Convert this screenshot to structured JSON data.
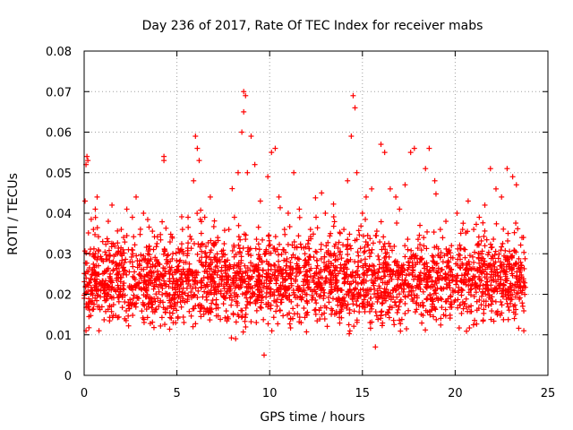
{
  "chart_data": {
    "type": "scatter",
    "title": "Day 236 of 2017, Rate Of TEC Index for receiver mabs",
    "xlabel": "GPS time / hours",
    "ylabel": "ROTI / TECUs",
    "xlim": [
      0,
      25
    ],
    "ylim": [
      0,
      0.08
    ],
    "xticks": [
      0,
      5,
      10,
      15,
      20,
      25
    ],
    "yticks": [
      0,
      0.01,
      0.02,
      0.03,
      0.04,
      0.05,
      0.06,
      0.07,
      0.08
    ],
    "grid": true,
    "marker": "plus",
    "color": "#ff0000",
    "x_range_data": [
      0.0,
      23.8
    ],
    "series": [
      {
        "values": [
          [
            0.05,
            0.043
          ],
          [
            0.1,
            0.052
          ],
          [
            0.15,
            0.054
          ],
          [
            0.2,
            0.053
          ],
          [
            0.1,
            0.011
          ],
          [
            0.3,
            0.03
          ],
          [
            0.5,
            0.036
          ],
          [
            0.6,
            0.041
          ],
          [
            0.7,
            0.044
          ],
          [
            0.8,
            0.011
          ],
          [
            1.0,
            0.033
          ],
          [
            1.3,
            0.038
          ],
          [
            1.5,
            0.042
          ],
          [
            1.8,
            0.03
          ],
          [
            2.0,
            0.036
          ],
          [
            2.3,
            0.041
          ],
          [
            2.6,
            0.039
          ],
          [
            2.8,
            0.044
          ],
          [
            3.0,
            0.025
          ],
          [
            3.2,
            0.04
          ],
          [
            3.5,
            0.019
          ],
          [
            3.8,
            0.022
          ],
          [
            4.1,
            0.018
          ],
          [
            4.3,
            0.054
          ],
          [
            4.3,
            0.053
          ],
          [
            4.5,
            0.028
          ],
          [
            4.8,
            0.013
          ],
          [
            5.0,
            0.026
          ],
          [
            5.3,
            0.036
          ],
          [
            5.6,
            0.039
          ],
          [
            5.9,
            0.048
          ],
          [
            6.0,
            0.059
          ],
          [
            6.1,
            0.056
          ],
          [
            6.2,
            0.053
          ],
          [
            6.5,
            0.039
          ],
          [
            6.8,
            0.044
          ],
          [
            7.0,
            0.032
          ],
          [
            7.2,
            0.034
          ],
          [
            7.5,
            0.03
          ],
          [
            7.8,
            0.036
          ],
          [
            8.1,
            0.039
          ],
          [
            8.3,
            0.05
          ],
          [
            8.5,
            0.06
          ],
          [
            8.6,
            0.07
          ],
          [
            8.7,
            0.069
          ],
          [
            8.6,
            0.065
          ],
          [
            8.8,
            0.05
          ],
          [
            9.0,
            0.059
          ],
          [
            9.2,
            0.052
          ],
          [
            9.5,
            0.043
          ],
          [
            9.7,
            0.005
          ],
          [
            9.9,
            0.049
          ],
          [
            10.1,
            0.055
          ],
          [
            10.3,
            0.056
          ],
          [
            10.5,
            0.044
          ],
          [
            10.8,
            0.036
          ],
          [
            11.0,
            0.04
          ],
          [
            11.3,
            0.05
          ],
          [
            11.6,
            0.041
          ],
          [
            11.9,
            0.03
          ],
          [
            12.2,
            0.036
          ],
          [
            12.5,
            0.039
          ],
          [
            12.8,
            0.045
          ],
          [
            13.0,
            0.04
          ],
          [
            13.3,
            0.03
          ],
          [
            13.5,
            0.026
          ],
          [
            13.8,
            0.035
          ],
          [
            14.0,
            0.036
          ],
          [
            14.2,
            0.048
          ],
          [
            14.4,
            0.059
          ],
          [
            14.5,
            0.069
          ],
          [
            14.6,
            0.066
          ],
          [
            14.7,
            0.05
          ],
          [
            15.0,
            0.04
          ],
          [
            15.2,
            0.044
          ],
          [
            15.5,
            0.046
          ],
          [
            15.7,
            0.007
          ],
          [
            16.0,
            0.057
          ],
          [
            16.2,
            0.055
          ],
          [
            16.5,
            0.046
          ],
          [
            16.8,
            0.044
          ],
          [
            17.0,
            0.041
          ],
          [
            17.3,
            0.047
          ],
          [
            17.6,
            0.055
          ],
          [
            17.8,
            0.056
          ],
          [
            18.1,
            0.037
          ],
          [
            18.4,
            0.051
          ],
          [
            18.6,
            0.056
          ],
          [
            18.9,
            0.048
          ],
          [
            19.2,
            0.036
          ],
          [
            19.5,
            0.038
          ],
          [
            19.8,
            0.032
          ],
          [
            20.1,
            0.04
          ],
          [
            20.4,
            0.036
          ],
          [
            20.7,
            0.043
          ],
          [
            21.0,
            0.036
          ],
          [
            21.3,
            0.039
          ],
          [
            21.6,
            0.042
          ],
          [
            21.9,
            0.051
          ],
          [
            22.2,
            0.046
          ],
          [
            22.5,
            0.044
          ],
          [
            22.8,
            0.051
          ],
          [
            23.1,
            0.049
          ],
          [
            23.3,
            0.047
          ],
          [
            23.6,
            0.034
          ],
          [
            23.7,
            0.011
          ]
        ]
      }
    ]
  }
}
